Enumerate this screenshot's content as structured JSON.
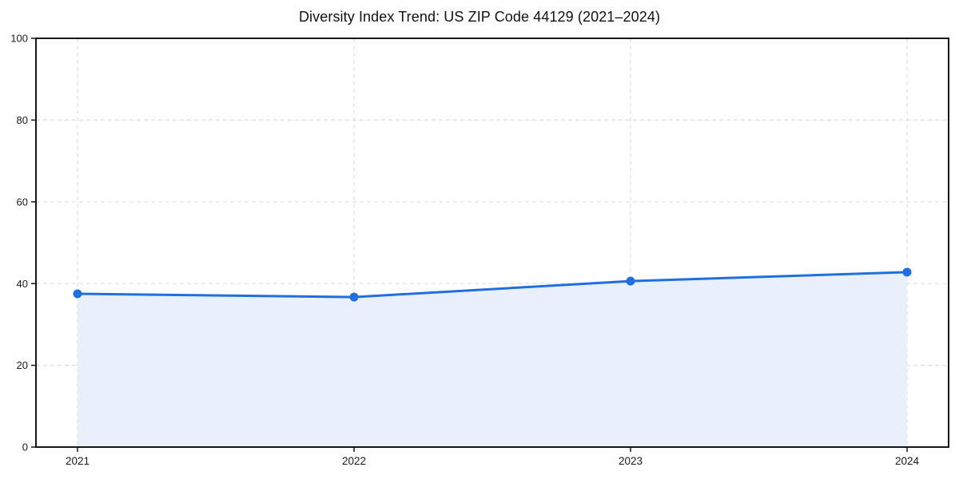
{
  "figure": {
    "background": "#ffffff"
  },
  "chart_data": {
    "type": "area",
    "title": "Diversity Index Trend: US ZIP Code 44129 (2021–2024)",
    "xlabel": "",
    "ylabel": "",
    "x": [
      "2021",
      "2022",
      "2023",
      "2024"
    ],
    "values": [
      37.5,
      36.7,
      40.6,
      42.8
    ],
    "ylim": [
      0,
      100
    ],
    "yticks": [
      0,
      20,
      40,
      60,
      80,
      100
    ],
    "grid": {
      "style": "dashed",
      "horizontal": true,
      "vertical": true
    },
    "legend": "none",
    "colors": {
      "line": "#1f6fe0",
      "marker": "#1f6fe0",
      "fill": "#e9f0fc",
      "grid": "#dedede",
      "spine": "#161616",
      "text": "#1a1a1a"
    }
  }
}
